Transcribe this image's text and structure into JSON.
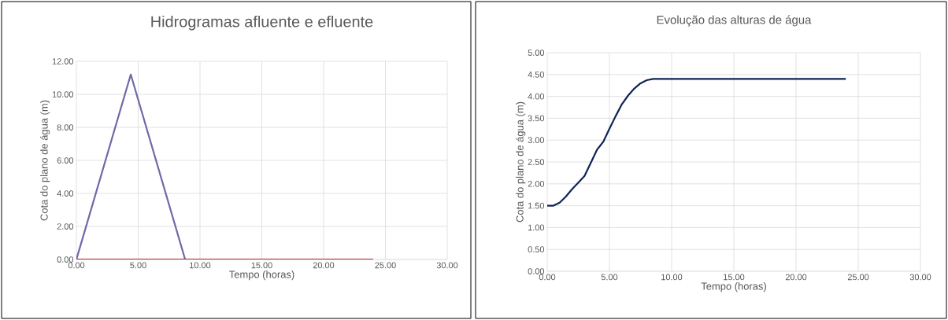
{
  "chart_data": [
    {
      "type": "line",
      "title": "Hidrogramas afluente e efluente",
      "xlabel": "Tempo (horas)",
      "ylabel": "Cota do plano de água (m)",
      "series": [
        {
          "color": "#6d6aa6",
          "x": [
            0,
            4.4,
            8.8
          ],
          "values": [
            0,
            11.2,
            0
          ]
        },
        {
          "color": "#a52a2a",
          "x": [
            0,
            24
          ],
          "values": [
            0,
            0
          ]
        }
      ],
      "xlim": [
        0,
        30
      ],
      "ylim": [
        0,
        12
      ],
      "xticks": [
        {
          "value": 0,
          "label": "0.00"
        },
        {
          "value": 5,
          "label": "5.00"
        },
        {
          "value": 10,
          "label": "10.00"
        },
        {
          "value": 15,
          "label": "15.00"
        },
        {
          "value": 20,
          "label": "20.00"
        },
        {
          "value": 25,
          "label": "25.00"
        },
        {
          "value": 30,
          "label": "30.00"
        }
      ],
      "yticks": [
        {
          "value": 0,
          "label": "0.00"
        },
        {
          "value": 2,
          "label": "2.00"
        },
        {
          "value": 4,
          "label": "4.00"
        },
        {
          "value": 6,
          "label": "6.00"
        },
        {
          "value": 8,
          "label": "8.00"
        },
        {
          "value": 10,
          "label": "10.00"
        },
        {
          "value": 12,
          "label": "12.00"
        }
      ],
      "grid": true
    },
    {
      "type": "line",
      "title": "Evolução das alturas de água",
      "xlabel": "Tempo (horas)",
      "ylabel": "Cota do plano de água (m)",
      "series": [
        {
          "color": "#0f2456",
          "x": [
            0,
            0.5,
            1,
            1.5,
            2,
            2.5,
            3,
            3.5,
            4,
            4.5,
            5,
            5.5,
            6,
            6.5,
            7,
            7.5,
            8,
            8.5,
            24
          ],
          "values": [
            1.5,
            1.5,
            1.57,
            1.71,
            1.88,
            2.03,
            2.18,
            2.48,
            2.78,
            2.96,
            3.26,
            3.55,
            3.82,
            4.02,
            4.18,
            4.3,
            4.37,
            4.4,
            4.4
          ]
        }
      ],
      "xlim": [
        0,
        30
      ],
      "ylim": [
        0,
        5
      ],
      "xticks": [
        {
          "value": 0,
          "label": "0.00"
        },
        {
          "value": 5,
          "label": "5.00"
        },
        {
          "value": 10,
          "label": "10.00"
        },
        {
          "value": 15,
          "label": "15.00"
        },
        {
          "value": 20,
          "label": "20.00"
        },
        {
          "value": 25,
          "label": "25.00"
        },
        {
          "value": 30,
          "label": "30.00"
        }
      ],
      "yticks": [
        {
          "value": 0,
          "label": "0.00"
        },
        {
          "value": 0.5,
          "label": "0.50"
        },
        {
          "value": 1,
          "label": "1.00"
        },
        {
          "value": 1.5,
          "label": "1.50"
        },
        {
          "value": 2,
          "label": "2.00"
        },
        {
          "value": 2.5,
          "label": "2.50"
        },
        {
          "value": 3,
          "label": "3.00"
        },
        {
          "value": 3.5,
          "label": "3.50"
        },
        {
          "value": 4,
          "label": "4.00"
        },
        {
          "value": 4.5,
          "label": "4.50"
        },
        {
          "value": 5,
          "label": "5.00"
        }
      ],
      "grid": true
    }
  ]
}
